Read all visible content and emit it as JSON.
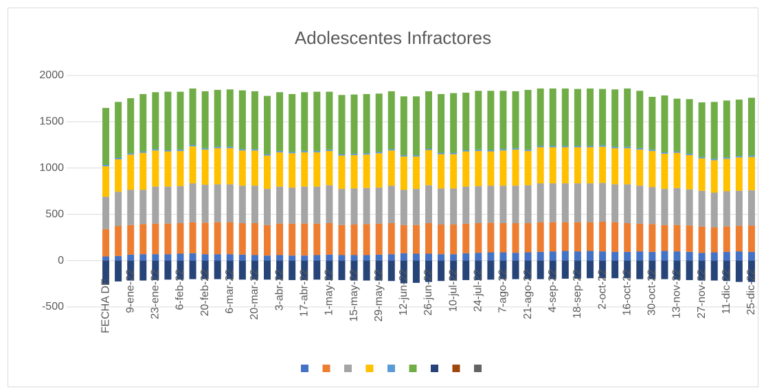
{
  "chart_data": {
    "type": "stacked_bar",
    "title": "Adolescentes Infractores",
    "categories": [
      "FECHA DE...",
      null,
      "9-ene-22",
      null,
      "23-ene-22",
      null,
      "6-feb-22",
      null,
      "20-feb-22",
      null,
      "6-mar-22",
      null,
      "20-mar-22",
      null,
      "3-abr-22",
      null,
      "17-abr-22",
      null,
      "1-may-22",
      null,
      "15-may-22",
      null,
      "29-may-22",
      null,
      "12-jun-22",
      null,
      "26-jun-22",
      null,
      "10-jul-22",
      null,
      "24-jul-22",
      null,
      "7-ago-22",
      null,
      "21-ago-22",
      null,
      "4-sep-22",
      null,
      "18-sep-22",
      null,
      "2-oct-22",
      null,
      "16-oct-22",
      null,
      "30-oct-22",
      null,
      "13-nov-22",
      null,
      "27-nov-22",
      null,
      "11-dic-22",
      null,
      "25-dic-22"
    ],
    "series": [
      {
        "color": "#4472c4",
        "values": [
          45,
          50,
          65,
          70,
          70,
          70,
          75,
          80,
          70,
          70,
          70,
          65,
          60,
          55,
          60,
          55,
          55,
          60,
          65,
          60,
          60,
          60,
          65,
          70,
          80,
          75,
          75,
          70,
          70,
          80,
          85,
          90,
          90,
          85,
          90,
          95,
          100,
          105,
          100,
          105,
          100,
          95,
          95,
          100,
          95,
          105,
          100,
          95,
          85,
          90,
          95,
          100,
          95
        ]
      },
      {
        "color": "#ed7d31",
        "values": [
          295,
          325,
          320,
          325,
          330,
          330,
          330,
          335,
          340,
          345,
          345,
          340,
          345,
          330,
          340,
          345,
          345,
          340,
          340,
          325,
          330,
          335,
          335,
          335,
          305,
          310,
          330,
          320,
          320,
          320,
          320,
          320,
          315,
          320,
          315,
          320,
          315,
          310,
          315,
          310,
          320,
          320,
          310,
          300,
          300,
          280,
          285,
          285,
          285,
          270,
          275,
          275,
          285
        ]
      },
      {
        "color": "#a5a5a5",
        "values": [
          350,
          370,
          380,
          370,
          400,
          400,
          400,
          420,
          410,
          410,
          410,
          405,
          405,
          390,
          400,
          390,
          400,
          400,
          410,
          390,
          390,
          390,
          390,
          405,
          380,
          390,
          410,
          390,
          390,
          400,
          400,
          400,
          405,
          405,
          410,
          420,
          420,
          420,
          420,
          420,
          420,
          410,
          420,
          410,
          400,
          390,
          400,
          390,
          385,
          375,
          380,
          380,
          380
        ]
      },
      {
        "color": "#ffc000",
        "values": [
          330,
          350,
          380,
          400,
          390,
          380,
          380,
          400,
          380,
          390,
          390,
          380,
          380,
          360,
          370,
          370,
          370,
          370,
          370,
          360,
          360,
          360,
          370,
          380,
          360,
          350,
          380,
          370,
          370,
          380,
          380,
          370,
          380,
          390,
          370,
          390,
          390,
          390,
          390,
          390,
          390,
          390,
          390,
          390,
          390,
          380,
          380,
          370,
          350,
          350,
          350,
          360,
          360
        ]
      },
      {
        "color": "#5b9bd5",
        "values": [
          15,
          15,
          15,
          15,
          15,
          15,
          15,
          15,
          15,
          15,
          15,
          15,
          15,
          15,
          15,
          15,
          15,
          15,
          15,
          15,
          15,
          15,
          15,
          15,
          15,
          15,
          15,
          15,
          15,
          15,
          15,
          15,
          15,
          15,
          15,
          15,
          15,
          15,
          15,
          15,
          15,
          15,
          15,
          15,
          15,
          15,
          15,
          15,
          15,
          15,
          15,
          15,
          15
        ]
      },
      {
        "color": "#70ad47",
        "values": [
          615,
          605,
          595,
          620,
          615,
          630,
          625,
          610,
          615,
          615,
          620,
          635,
          625,
          630,
          635,
          625,
          635,
          640,
          625,
          640,
          640,
          640,
          630,
          625,
          635,
          635,
          620,
          635,
          645,
          620,
          635,
          640,
          630,
          615,
          645,
          620,
          620,
          620,
          615,
          620,
          610,
          620,
          630,
          620,
          570,
          615,
          570,
          590,
          590,
          615,
          615,
          610,
          625
        ]
      },
      {
        "color": "#264478",
        "values": [
          -260,
          -225,
          -215,
          -215,
          -210,
          -205,
          -205,
          -200,
          -200,
          -200,
          -200,
          -205,
          -205,
          -205,
          -205,
          -210,
          -210,
          -205,
          -210,
          -210,
          -215,
          -215,
          -215,
          -220,
          -245,
          -240,
          -230,
          -220,
          -215,
          -210,
          -210,
          -205,
          -200,
          -200,
          -200,
          -200,
          -200,
          -195,
          -195,
          -190,
          -190,
          -190,
          -190,
          -200,
          -200,
          -200,
          -205,
          -210,
          -215,
          -215,
          -220,
          -230,
          -230
        ]
      },
      {
        "color": "#9e480e",
        "values": [
          0,
          0,
          0,
          0,
          0,
          0,
          0,
          0,
          0,
          0,
          0,
          0,
          0,
          0,
          0,
          0,
          0,
          0,
          0,
          0,
          0,
          0,
          0,
          0,
          0,
          0,
          0,
          0,
          0,
          0,
          0,
          0,
          0,
          0,
          0,
          0,
          0,
          0,
          0,
          0,
          0,
          0,
          0,
          0,
          0,
          0,
          0,
          0,
          0,
          0,
          0,
          0,
          0
        ]
      },
      {
        "color": "#636363",
        "values": [
          0,
          0,
          0,
          0,
          0,
          0,
          0,
          0,
          0,
          0,
          0,
          0,
          0,
          0,
          0,
          0,
          0,
          0,
          0,
          0,
          0,
          0,
          0,
          0,
          0,
          0,
          0,
          0,
          0,
          0,
          0,
          0,
          0,
          0,
          0,
          0,
          0,
          0,
          0,
          0,
          0,
          0,
          0,
          0,
          0,
          0,
          0,
          0,
          0,
          0,
          0,
          0,
          0
        ]
      }
    ],
    "ylim": [
      -500,
      2000
    ],
    "yticks": [
      -500,
      0,
      500,
      1000,
      1500,
      2000
    ],
    "grid": true
  }
}
